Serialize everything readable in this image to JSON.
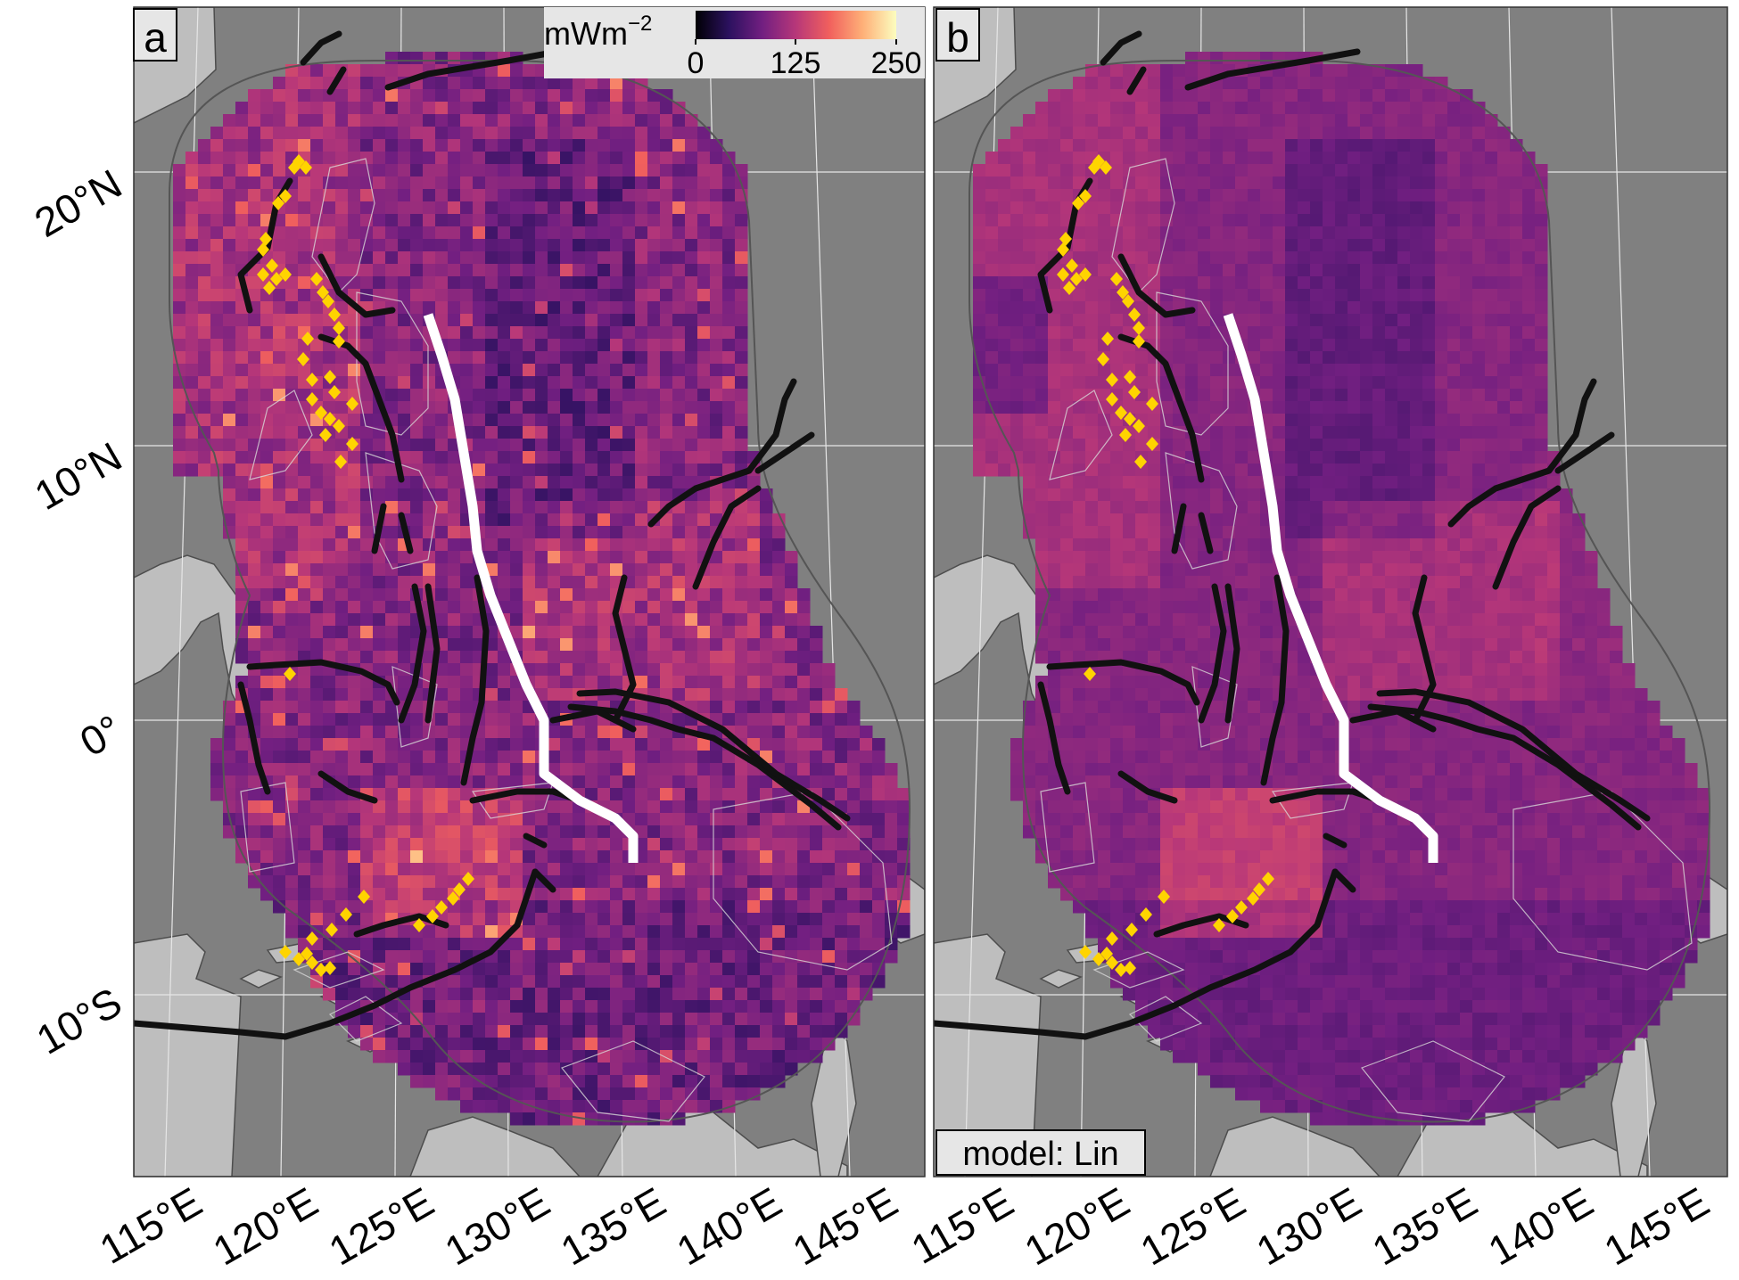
{
  "panels": [
    {
      "id": "a",
      "label": "a"
    },
    {
      "id": "b",
      "label": "b"
    }
  ],
  "colorbar": {
    "unit_main": "mWm",
    "unit_exp": "−2",
    "ticks": [
      "0",
      "125",
      "250"
    ],
    "range": [
      0,
      250
    ],
    "stops": [
      "#000004",
      "#2c115f",
      "#721f81",
      "#b73779",
      "#f1605d",
      "#feb078",
      "#fcfdbf"
    ]
  },
  "model_label": "model: Lin",
  "lat_labels": [
    "20°N",
    "10°N",
    "0°",
    "10°S"
  ],
  "lon_labels": [
    "115°E",
    "120°E",
    "125°E",
    "130°E",
    "135°E",
    "140°E",
    "145°E"
  ],
  "colors": {
    "ocean": "#808080",
    "land": "#bebebe",
    "trench": "#111111",
    "profile": "#ffffff",
    "volcano": "#ffd400",
    "heatflow_base": "#5a2a80"
  },
  "icons": {
    "volcano_marker": "yellow-diamond",
    "profile_line": "white-line",
    "trench_line": "black-line"
  }
}
